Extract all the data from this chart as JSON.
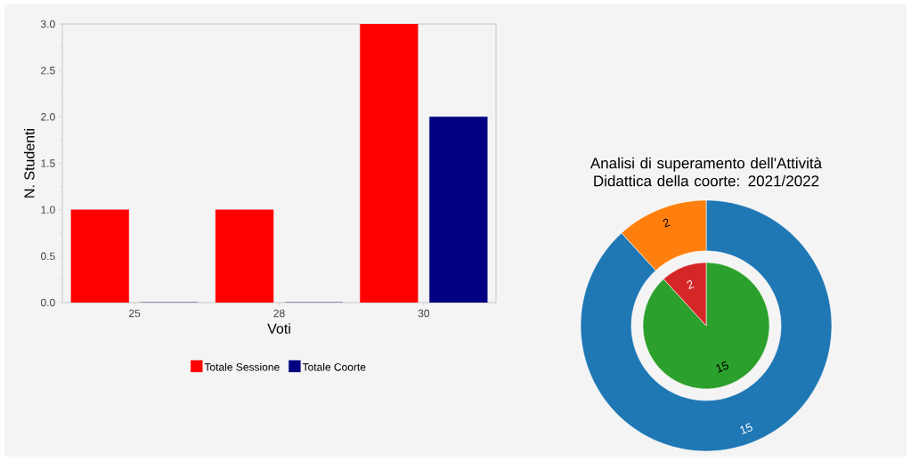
{
  "chart_data": [
    {
      "type": "bar",
      "xlabel": "Voti",
      "ylabel": "N. Studenti",
      "categories": [
        "25",
        "28",
        "30"
      ],
      "series": [
        {
          "name": "Totale Sessione",
          "color": "#ff0000",
          "values": [
            1,
            1,
            3
          ]
        },
        {
          "name": "Totale Coorte",
          "color": "#000080",
          "values": [
            0,
            0,
            2
          ]
        }
      ],
      "ylim": [
        0,
        3
      ],
      "yticks": [
        {
          "value": 0,
          "label": "0.0"
        },
        {
          "value": 0.5,
          "label": "0.5"
        },
        {
          "value": 1,
          "label": "1.0"
        },
        {
          "value": 1.5,
          "label": "1.5"
        },
        {
          "value": 2,
          "label": "2.0"
        },
        {
          "value": 2.5,
          "label": "2.5"
        },
        {
          "value": 3,
          "label": "3.0"
        }
      ],
      "grid": false,
      "legend": "bottom"
    },
    {
      "type": "donut",
      "title": "Analisi di superamento dell'Attività Didattica della coorte: 2021/2022",
      "categories": [
        null,
        null
      ],
      "values": [
        15,
        2
      ],
      "colors": [
        "#1f77b4",
        "#ff7f0e"
      ],
      "data_labels": true
    },
    {
      "type": "pie",
      "categories": [
        null,
        null
      ],
      "values": [
        15,
        2
      ],
      "colors": [
        "#2ca02c",
        "#d62728"
      ],
      "data_labels": true
    }
  ]
}
